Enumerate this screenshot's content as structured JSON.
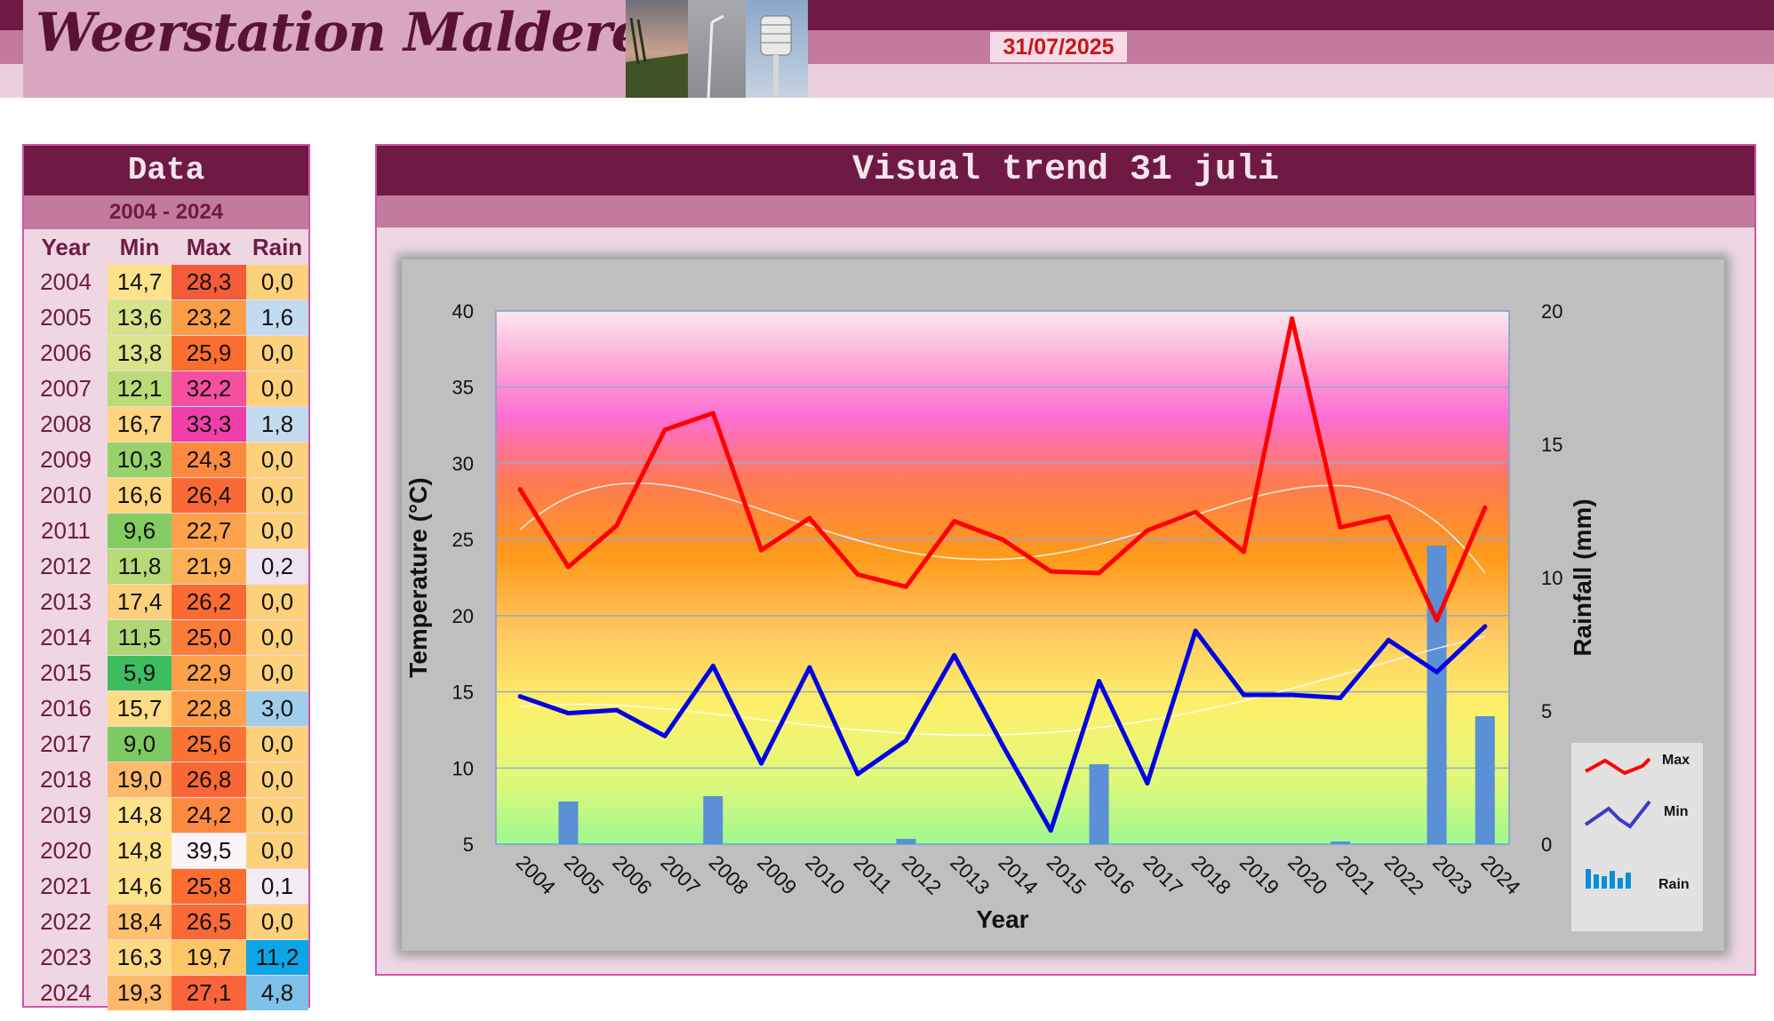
{
  "header": {
    "site_title": "Weerstation Malderen",
    "date": "31/07/2025"
  },
  "data_panel": {
    "title": "Data",
    "range": "2004 - 2024",
    "columns": [
      "Year",
      "Min",
      "Max",
      "Rain"
    ],
    "rows": [
      {
        "year": "2004",
        "min": "14,7",
        "max": "28,3",
        "rain": "0,0",
        "min_bg": "#fde28a",
        "max_bg": "#f25c39",
        "rain_bg": "#fdd17c"
      },
      {
        "year": "2005",
        "min": "13,6",
        "max": "23,2",
        "rain": "1,6",
        "min_bg": "#d6e38a",
        "max_bg": "#fb9c47",
        "rain_bg": "#c3dbef"
      },
      {
        "year": "2006",
        "min": "13,8",
        "max": "25,9",
        "rain": "0,0",
        "min_bg": "#dbe38b",
        "max_bg": "#fb6e2f",
        "rain_bg": "#fdd17c"
      },
      {
        "year": "2007",
        "min": "12,1",
        "max": "32,2",
        "rain": "0,0",
        "min_bg": "#b8dc78",
        "max_bg": "#f54fa0",
        "rain_bg": "#fdd17c"
      },
      {
        "year": "2008",
        "min": "16,7",
        "max": "33,3",
        "rain": "1,8",
        "min_bg": "#fed67f",
        "max_bg": "#f03fa8",
        "rain_bg": "#c3dbef"
      },
      {
        "year": "2009",
        "min": "10,3",
        "max": "24,3",
        "rain": "0,0",
        "min_bg": "#97d36a",
        "max_bg": "#fb8940",
        "rain_bg": "#fdd17c"
      },
      {
        "year": "2010",
        "min": "16,6",
        "max": "26,4",
        "rain": "0,0",
        "min_bg": "#fed67f",
        "max_bg": "#f96936",
        "rain_bg": "#fdd17c"
      },
      {
        "year": "2011",
        "min": "9,6",
        "max": "22,7",
        "rain": "0,0",
        "min_bg": "#82cc62",
        "max_bg": "#fca24b",
        "rain_bg": "#fdd17c"
      },
      {
        "year": "2012",
        "min": "11,8",
        "max": "21,9",
        "rain": "0,2",
        "min_bg": "#b5da76",
        "max_bg": "#fdb055",
        "rain_bg": "#ece4f0"
      },
      {
        "year": "2013",
        "min": "17,4",
        "max": "26,2",
        "rain": "0,0",
        "min_bg": "#fdd07c",
        "max_bg": "#fa6b33",
        "rain_bg": "#fdd17c"
      },
      {
        "year": "2014",
        "min": "11,5",
        "max": "25,0",
        "rain": "0,0",
        "min_bg": "#aed875",
        "max_bg": "#fb7b39",
        "rain_bg": "#fdd17c"
      },
      {
        "year": "2015",
        "min": "5,9",
        "max": "22,9",
        "rain": "0,0",
        "min_bg": "#3dbd60",
        "max_bg": "#fca049",
        "rain_bg": "#fdd17c"
      },
      {
        "year": "2016",
        "min": "15,7",
        "max": "22,8",
        "rain": "3,0",
        "min_bg": "#fedc85",
        "max_bg": "#fca049",
        "rain_bg": "#a0cde9"
      },
      {
        "year": "2017",
        "min": "9,0",
        "max": "25,6",
        "rain": "0,0",
        "min_bg": "#7dca62",
        "max_bg": "#fb7334",
        "rain_bg": "#fdd17c"
      },
      {
        "year": "2018",
        "min": "19,0",
        "max": "26,8",
        "rain": "0,0",
        "min_bg": "#fdba6a",
        "max_bg": "#f96735",
        "rain_bg": "#fdd17c"
      },
      {
        "year": "2019",
        "min": "14,8",
        "max": "24,2",
        "rain": "0,0",
        "min_bg": "#fde28a",
        "max_bg": "#fb8940",
        "rain_bg": "#fdd17c"
      },
      {
        "year": "2020",
        "min": "14,8",
        "max": "39,5",
        "rain": "0,0",
        "min_bg": "#fde28a",
        "max_bg": "#faf3f7",
        "rain_bg": "#fdd17c"
      },
      {
        "year": "2021",
        "min": "14,6",
        "max": "25,8",
        "rain": "0,1",
        "min_bg": "#fde28a",
        "max_bg": "#fb6e2f",
        "rain_bg": "#f3ecf3"
      },
      {
        "year": "2022",
        "min": "18,4",
        "max": "26,5",
        "rain": "0,0",
        "min_bg": "#fdc170",
        "max_bg": "#f96936",
        "rain_bg": "#fdd17c"
      },
      {
        "year": "2023",
        "min": "16,3",
        "max": "19,7",
        "rain": "11,2",
        "min_bg": "#fed984",
        "max_bg": "#fdc566",
        "rain_bg": "#0ba6e6"
      },
      {
        "year": "2024",
        "min": "19,3",
        "max": "27,1",
        "rain": "4,8",
        "min_bg": "#fdb86a",
        "max_bg": "#f9643a",
        "rain_bg": "#7ec0e8"
      }
    ]
  },
  "chart_panel": {
    "title": "Visual trend 31 juli"
  },
  "chart_data": {
    "type": "line",
    "xlabel": "Year",
    "ylabel": "Temperature (°C)",
    "y2label": "Rainfall (mm)",
    "ylim": [
      5,
      40
    ],
    "y2lim": [
      0,
      20
    ],
    "yticks": [
      "5",
      "10",
      "15",
      "20",
      "25",
      "30",
      "35",
      "40"
    ],
    "y2ticks": [
      "0",
      "5",
      "10",
      "15",
      "20"
    ],
    "grid": true,
    "legend_position": "right",
    "legend": [
      "Max",
      "Min",
      "Rain"
    ],
    "categories": [
      "2004",
      "2005",
      "2006",
      "2007",
      "2008",
      "2009",
      "2010",
      "2011",
      "2012",
      "2013",
      "2014",
      "2015",
      "2016",
      "2017",
      "2018",
      "2019",
      "2020",
      "2021",
      "2022",
      "2023",
      "2024"
    ],
    "series": [
      {
        "name": "Max",
        "type": "line",
        "axis": "left",
        "color": "#ff0000",
        "values": [
          28.3,
          23.2,
          25.9,
          32.2,
          33.3,
          24.3,
          26.4,
          22.7,
          21.9,
          26.2,
          25.0,
          22.9,
          22.8,
          25.6,
          26.8,
          24.2,
          39.5,
          25.8,
          26.5,
          19.7,
          27.1
        ]
      },
      {
        "name": "Min",
        "type": "line",
        "axis": "left",
        "color": "#0000e6",
        "values": [
          14.7,
          13.6,
          13.8,
          12.1,
          16.7,
          10.3,
          16.6,
          9.6,
          11.8,
          17.4,
          11.5,
          5.9,
          15.7,
          9.0,
          19.0,
          14.8,
          14.8,
          14.6,
          18.4,
          16.3,
          19.3
        ]
      },
      {
        "name": "Rain",
        "type": "bar",
        "axis": "right",
        "color": "#5b8fd6",
        "values": [
          0.0,
          1.6,
          0.0,
          0.0,
          1.8,
          0.0,
          0.0,
          0.0,
          0.2,
          0.0,
          0.0,
          0.0,
          3.0,
          0.0,
          0.0,
          0.0,
          0.0,
          0.1,
          0.0,
          11.2,
          4.8
        ]
      }
    ]
  }
}
